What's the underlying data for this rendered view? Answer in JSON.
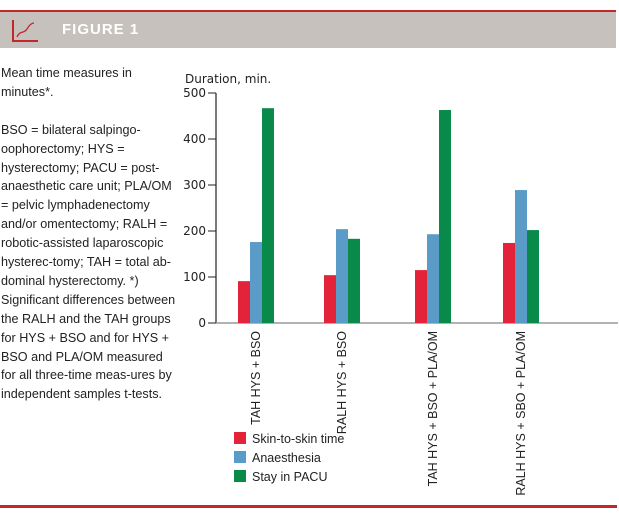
{
  "header": {
    "title": "FIGURE 1",
    "icon": "line-chart-icon",
    "accent_color": "#c1272d",
    "band_color": "#c6c1bc"
  },
  "caption": {
    "intro": "Mean time measures in minutes*.",
    "notes": "BSO = bilateral salpingo-oophorectomy; HYS = hysterectomy; PACU = post-anaesthetic care unit; PLA/OM = pelvic lymphadenectomy and/or omentectomy; RALH = robotic-assisted laparoscopic hysterec-tomy; TAH = total ab-dominal hysterectomy. *) Significant differences between the RALH and the TAH groups for HYS + BSO and for HYS + BSO and PLA/OM measured for all three-time meas-ures by independent samples t-tests."
  },
  "chart_data": {
    "type": "bar",
    "title": "",
    "ylabel": "Duration, min.",
    "xlabel": "",
    "ylim": [
      0,
      500
    ],
    "yticks": [
      0,
      100,
      200,
      300,
      400,
      500
    ],
    "grid": false,
    "legend_position": "bottom-left",
    "categories": [
      "TAH HYS + BSO",
      "RALH HYS + BSO",
      "TAH HYS + BSO + PLA/OM",
      "RALH HYS + SBO + PLA/OM"
    ],
    "series": [
      {
        "name": "Skin-to-skin time",
        "color": "#e2233a",
        "values": [
          91,
          104,
          115,
          174
        ]
      },
      {
        "name": "Anaesthesia",
        "color": "#5a9bc8",
        "values": [
          176,
          204,
          193,
          289
        ]
      },
      {
        "name": "Stay in PACU",
        "color": "#0a8a4a",
        "values": [
          467,
          183,
          463,
          202
        ]
      }
    ]
  }
}
